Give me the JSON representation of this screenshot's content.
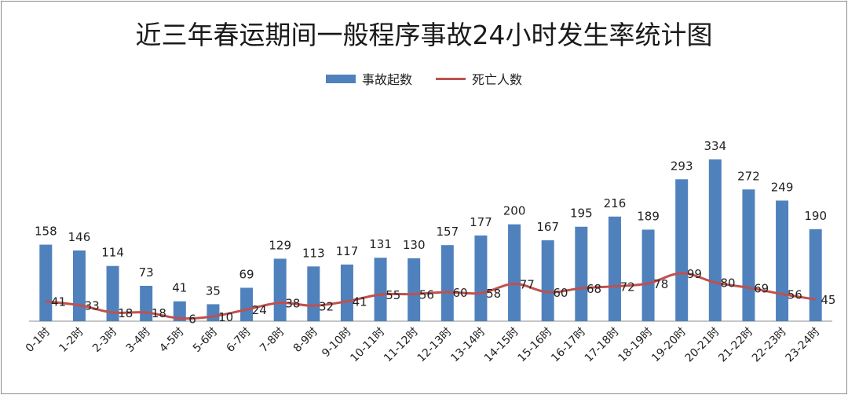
{
  "colors": {
    "bar": "#4f81bd",
    "line": "#c0504d",
    "axis": "#8c8c8c"
  },
  "chart_data": {
    "type": "bar",
    "title": "近三年春运期间一般程序事故24小时发生率统计图",
    "legend_position": "top",
    "grid": false,
    "categories": [
      "0-1时",
      "1-2时",
      "2-3时",
      "3-4时",
      "4-5时",
      "5-6时",
      "6-7时",
      "7-8时",
      "8-9时",
      "9-10时",
      "10-11时",
      "11-12时",
      "12-13时",
      "13-14时",
      "14-15时",
      "15-16时",
      "16-17时",
      "17-18时",
      "18-19时",
      "19-20时",
      "20-21时",
      "21-22时",
      "22-23时",
      "23-24时"
    ],
    "series": [
      {
        "name": "事故起数",
        "kind": "bar",
        "values": [
          158,
          146,
          114,
          73,
          41,
          35,
          69,
          129,
          113,
          117,
          131,
          130,
          157,
          177,
          200,
          167,
          195,
          216,
          189,
          293,
          334,
          272,
          249,
          190
        ]
      },
      {
        "name": "死亡人数",
        "kind": "line",
        "values": [
          41,
          33,
          18,
          18,
          6,
          10,
          24,
          38,
          32,
          41,
          55,
          56,
          60,
          58,
          77,
          60,
          68,
          72,
          78,
          99,
          80,
          69,
          56,
          45
        ]
      }
    ]
  }
}
